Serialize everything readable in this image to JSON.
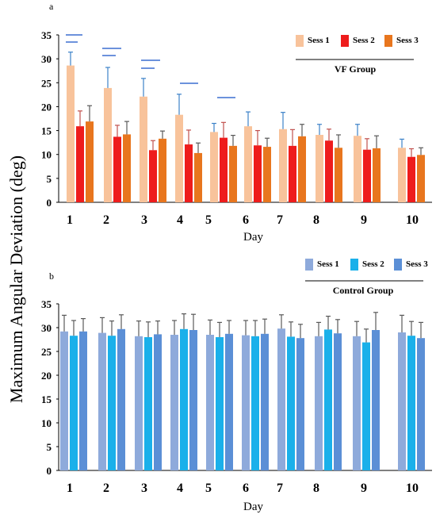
{
  "ylabel": "Maximum Angular Deviation (deg)",
  "chart_data": [
    {
      "type": "bar",
      "panel": "a",
      "group_label": "VF Group",
      "categories": [
        "1",
        "2",
        "3",
        "4",
        "5",
        "6",
        "7",
        "8",
        "9",
        "10"
      ],
      "xlabel": "Day",
      "ylabel": "Maximum Angular Deviation (deg)",
      "ylim": [
        0,
        35
      ],
      "yticks": [
        0,
        5,
        10,
        15,
        20,
        25,
        30,
        35
      ],
      "legend_position": "top-right",
      "series": [
        {
          "name": "Sess 1",
          "color": "#f8c39b",
          "error_color": "#3c82c8",
          "values": [
            28.6,
            23.9,
            22.1,
            18.3,
            14.7,
            15.9,
            15.3,
            14.1,
            13.9,
            11.4
          ],
          "errors": [
            2.8,
            4.3,
            3.8,
            4.3,
            1.8,
            3.0,
            3.5,
            2.2,
            2.4,
            1.8
          ]
        },
        {
          "name": "Sess 2",
          "color": "#ee1c1c",
          "error_color": "#c0504d",
          "values": [
            15.9,
            13.7,
            10.9,
            12.1,
            13.5,
            11.9,
            11.8,
            12.9,
            11.0,
            9.5
          ],
          "errors": [
            3.2,
            2.4,
            2.0,
            3.0,
            3.2,
            3.1,
            3.4,
            2.4,
            2.3,
            1.7
          ]
        },
        {
          "name": "Sess 3",
          "color": "#e8761e",
          "error_color": "#595959",
          "values": [
            16.9,
            14.2,
            13.3,
            10.3,
            11.8,
            11.6,
            13.8,
            11.4,
            11.3,
            9.9
          ],
          "errors": [
            3.3,
            2.7,
            1.6,
            2.1,
            2.2,
            1.8,
            2.5,
            2.7,
            2.6,
            1.5
          ]
        }
      ]
    },
    {
      "type": "bar",
      "panel": "b",
      "group_label": "Control Group",
      "categories": [
        "1",
        "2",
        "3",
        "4",
        "5",
        "6",
        "7",
        "8",
        "9",
        "10"
      ],
      "xlabel": "Day",
      "ylabel": "Maximum Angular Deviation (deg)",
      "ylim": [
        0,
        35
      ],
      "yticks": [
        0,
        5,
        10,
        15,
        20,
        25,
        30,
        35
      ],
      "legend_position": "top-right",
      "series": [
        {
          "name": "Sess 1",
          "color": "#8eaadb",
          "error_color": "#595959",
          "values": [
            29.2,
            28.9,
            28.2,
            28.5,
            28.5,
            28.4,
            29.8,
            28.2,
            28.2,
            29.0
          ],
          "errors": [
            3.4,
            3.2,
            3.2,
            3.0,
            3.1,
            3.1,
            2.9,
            2.9,
            3.1,
            3.6
          ]
        },
        {
          "name": "Sess 2",
          "color": "#1ab0ea",
          "error_color": "#595959",
          "values": [
            28.3,
            28.3,
            28.0,
            29.7,
            28.0,
            28.2,
            28.1,
            29.6,
            26.9,
            28.3
          ],
          "errors": [
            3.2,
            3.1,
            3.2,
            3.2,
            3.1,
            3.3,
            3.1,
            2.8,
            2.8,
            3.0
          ]
        },
        {
          "name": "Sess 3",
          "color": "#5b8fd6",
          "error_color": "#595959",
          "values": [
            29.2,
            29.7,
            28.6,
            29.5,
            28.7,
            28.7,
            27.8,
            28.8,
            29.5,
            27.8
          ],
          "errors": [
            2.7,
            3.0,
            2.8,
            3.3,
            2.8,
            3.1,
            2.9,
            2.9,
            3.7,
            3.3
          ]
        }
      ]
    }
  ]
}
